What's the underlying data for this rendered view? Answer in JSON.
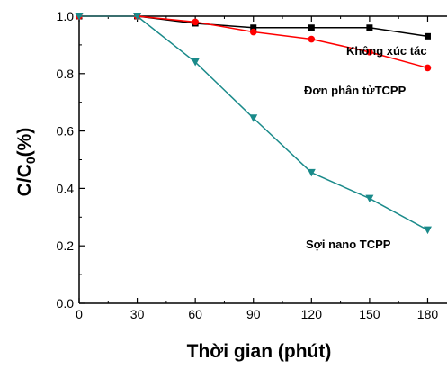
{
  "chart_data": {
    "type": "line",
    "title": "",
    "xlabel": "Thời gian (phút)",
    "ylabel": "C/C0(%)",
    "ylabel_main": "C/C",
    "ylabel_sub": "0",
    "ylabel_tail": "(%)",
    "xlim": [
      0,
      190
    ],
    "ylim": [
      0.0,
      1.0
    ],
    "xticks": [
      0,
      30,
      60,
      90,
      120,
      150,
      180
    ],
    "yticks": [
      0.0,
      0.2,
      0.4,
      0.6,
      0.8,
      1.0
    ],
    "ytick_labels": [
      "0.0",
      "0.2",
      "0.4",
      "0.6",
      "0.8",
      "1.0"
    ],
    "grid": false,
    "legend": "none",
    "series": [
      {
        "name": "Không xúc tác",
        "color": "#000000",
        "marker": "square",
        "x": [
          0,
          30,
          60,
          90,
          120,
          150,
          180
        ],
        "y": [
          1.0,
          1.0,
          0.975,
          0.96,
          0.96,
          0.96,
          0.93
        ]
      },
      {
        "name": "Đơn phân tửTCPP",
        "color": "#ff0000",
        "marker": "circle",
        "x": [
          0,
          30,
          60,
          90,
          120,
          150,
          180
        ],
        "y": [
          1.0,
          1.0,
          0.98,
          0.945,
          0.92,
          0.875,
          0.82
        ]
      },
      {
        "name": "Sợi nano TCPP",
        "color": "#1a8a8a",
        "marker": "triangle-down",
        "x": [
          0,
          30,
          60,
          90,
          120,
          150,
          180
        ],
        "y": [
          1.0,
          1.0,
          0.84,
          0.645,
          0.455,
          0.365,
          0.255
        ]
      }
    ]
  }
}
